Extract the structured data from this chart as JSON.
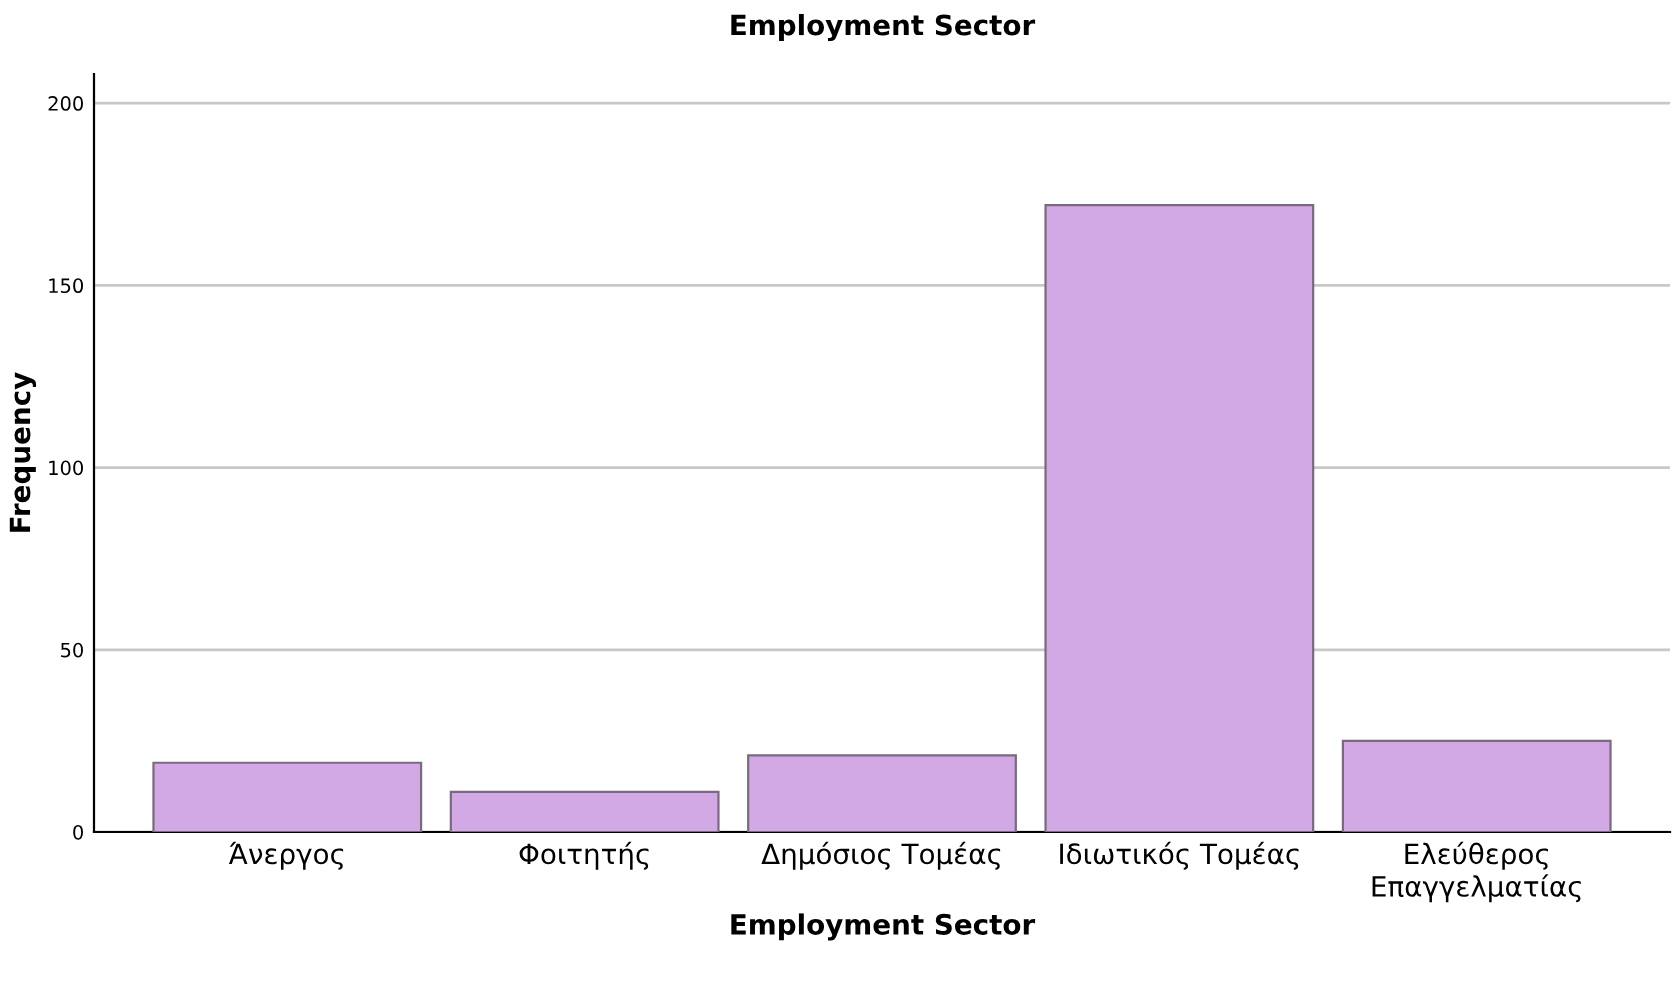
{
  "chart_data": {
    "type": "bar",
    "title": "Employment Sector",
    "xlabel": "Employment Sector",
    "ylabel": "Frequency",
    "categories": [
      "Άνεργος",
      "Φοιτητής",
      "Δημόσιος Τομέας",
      "Ιδιωτικός Τομέας",
      "Ελεύθερος\nΕπαγγελματίας"
    ],
    "values": [
      19,
      11,
      21,
      172,
      25
    ],
    "color": "#d2a9e5",
    "ylim": [
      0,
      208
    ],
    "yticks": [
      0,
      50,
      100,
      150,
      200
    ],
    "grid": "y"
  }
}
